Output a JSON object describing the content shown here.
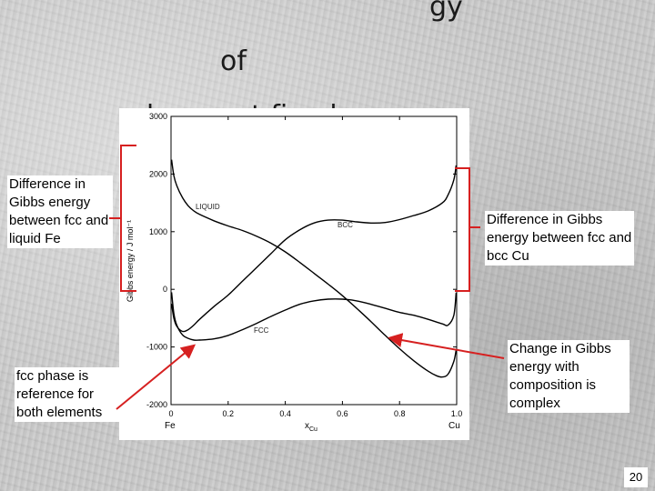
{
  "slide": {
    "title_line1": "gy",
    "title_line2": "of",
    "title_line3": "phases at fixed",
    "note_left": "Difference in Gibbs energy between fcc and liquid Fe",
    "note_fcc": "fcc phase is reference for both elements",
    "note_right": "Difference in Gibbs energy between fcc and bcc Cu",
    "note_change": "Change in Gibbs energy with composition is complex",
    "page_number": "20"
  },
  "colors": {
    "arrow": "#d62020",
    "bracket": "#d62020",
    "curve": "#000000"
  },
  "chart_data": {
    "type": "line",
    "ylabel": "Gibbs energy / J mol⁻¹",
    "xlabel_main": "x",
    "xlabel_sub": "Cu",
    "x_end_labels": [
      "Fe",
      "Cu"
    ],
    "xlim": [
      0,
      1
    ],
    "ylim": [
      -2000,
      3000
    ],
    "x_ticks": [
      0,
      0.2,
      0.4,
      0.6,
      0.8,
      1.0
    ],
    "x_tick_labels": [
      "0",
      "0.2",
      "0.4",
      "0.6",
      "0.8",
      "1.0"
    ],
    "y_ticks": [
      -2000,
      -1000,
      0,
      1000,
      2000,
      3000
    ],
    "y_tick_labels": [
      "-2000",
      "-1000",
      "0",
      "1000",
      "2000",
      "3000"
    ],
    "grid": false,
    "series": [
      {
        "name": "LIQUID",
        "x": [
          0.002,
          0.01,
          0.02,
          0.04,
          0.06,
          0.08,
          0.1,
          0.15,
          0.2,
          0.25,
          0.3,
          0.35,
          0.4,
          0.45,
          0.5,
          0.55,
          0.6,
          0.65,
          0.7,
          0.75,
          0.8,
          0.85,
          0.9,
          0.93,
          0.95,
          0.97,
          0.99,
          0.998
        ],
        "y": [
          2250,
          1970,
          1800,
          1590,
          1450,
          1360,
          1300,
          1190,
          1100,
          1020,
          920,
          800,
          650,
          470,
          280,
          90,
          -110,
          -330,
          -560,
          -800,
          -1030,
          -1240,
          -1420,
          -1500,
          -1520,
          -1470,
          -1250,
          -1050
        ]
      },
      {
        "name": "BCC",
        "x": [
          0.002,
          0.01,
          0.02,
          0.04,
          0.06,
          0.08,
          0.1,
          0.15,
          0.2,
          0.25,
          0.3,
          0.35,
          0.4,
          0.45,
          0.5,
          0.55,
          0.6,
          0.65,
          0.7,
          0.75,
          0.8,
          0.85,
          0.9,
          0.95,
          0.97,
          0.99,
          0.998
        ],
        "y": [
          -250,
          -500,
          -640,
          -730,
          -700,
          -620,
          -520,
          -300,
          -100,
          140,
          380,
          620,
          860,
          1030,
          1150,
          1200,
          1200,
          1170,
          1150,
          1160,
          1210,
          1280,
          1360,
          1500,
          1640,
          1900,
          2150
        ]
      },
      {
        "name": "FCC",
        "x": [
          0.002,
          0.01,
          0.02,
          0.04,
          0.06,
          0.08,
          0.1,
          0.15,
          0.2,
          0.25,
          0.3,
          0.35,
          0.4,
          0.45,
          0.5,
          0.55,
          0.6,
          0.65,
          0.7,
          0.75,
          0.8,
          0.85,
          0.9,
          0.95,
          0.97,
          0.99,
          0.998
        ],
        "y": [
          -50,
          -420,
          -620,
          -790,
          -850,
          -880,
          -880,
          -860,
          -800,
          -700,
          -590,
          -470,
          -360,
          -260,
          -200,
          -170,
          -170,
          -200,
          -260,
          -330,
          -400,
          -450,
          -520,
          -600,
          -620,
          -450,
          -60
        ]
      }
    ]
  }
}
